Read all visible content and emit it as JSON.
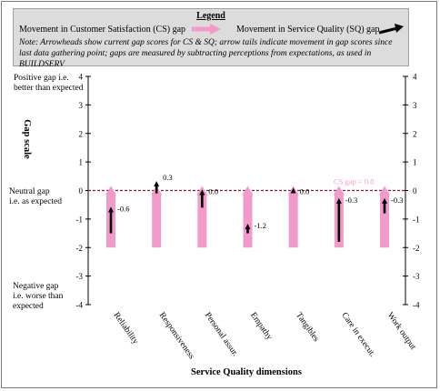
{
  "legend": {
    "title": "Legend",
    "cs_label": "Movement in Customer Satisfaction (CS) gap",
    "sq_label": "Movement in Service Quality (SQ) gap",
    "note": "Note: Arrowheads show current gap scores for CS & SQ; arrow tails indicate movement in gap scores since last data gathering point; gaps are measured by subtracting perceptions from expectations, as used in BUILDSERV",
    "cs_color": "#f29ac9",
    "sq_color": "#000000"
  },
  "chart_data": {
    "type": "bar",
    "title": "",
    "xlabel": "Service Quality dimensions",
    "ylabel": "Gap scale",
    "ylim": [
      -4,
      4
    ],
    "yticks": [
      4,
      3,
      2,
      1,
      0,
      -1,
      -2,
      -3,
      -4
    ],
    "tick_labels": [
      "4",
      "3",
      "2",
      "1",
      "0",
      "-1",
      "-2",
      "-3",
      "-4"
    ],
    "categories": [
      "Reliability",
      "Responsiveness",
      "Personal assur.",
      "Empathy",
      "Tangibles",
      "Care in execut.",
      "Work output"
    ],
    "side_labels": {
      "positive": "Positive gap i.e. better than expected",
      "neutral": "Neutral gap i.e. as expected",
      "negative": "Negative gap i.e. worse than expected"
    },
    "cs_annotation": "CS gap = 0.0",
    "series": [
      {
        "name": "Movement in Customer Satisfaction (CS) gap",
        "from": [
          -2,
          -2,
          -2,
          -2,
          -2,
          -2,
          -2
        ],
        "to": [
          0,
          0,
          0,
          0,
          0,
          0,
          0
        ]
      },
      {
        "name": "Movement in Service Quality (SQ) gap",
        "from": [
          -1.5,
          -0.1,
          -0.6,
          -1.5,
          0,
          -1.8,
          -0.8
        ],
        "to": [
          -0.6,
          0.3,
          0.0,
          -1.2,
          0.0,
          -0.3,
          -0.3
        ]
      }
    ],
    "value_labels": [
      "-0.6",
      "0.3",
      "0.0",
      "-1.2",
      "0.0",
      "-0.3",
      "-0.3"
    ],
    "grid": false,
    "legend_position": "top"
  }
}
